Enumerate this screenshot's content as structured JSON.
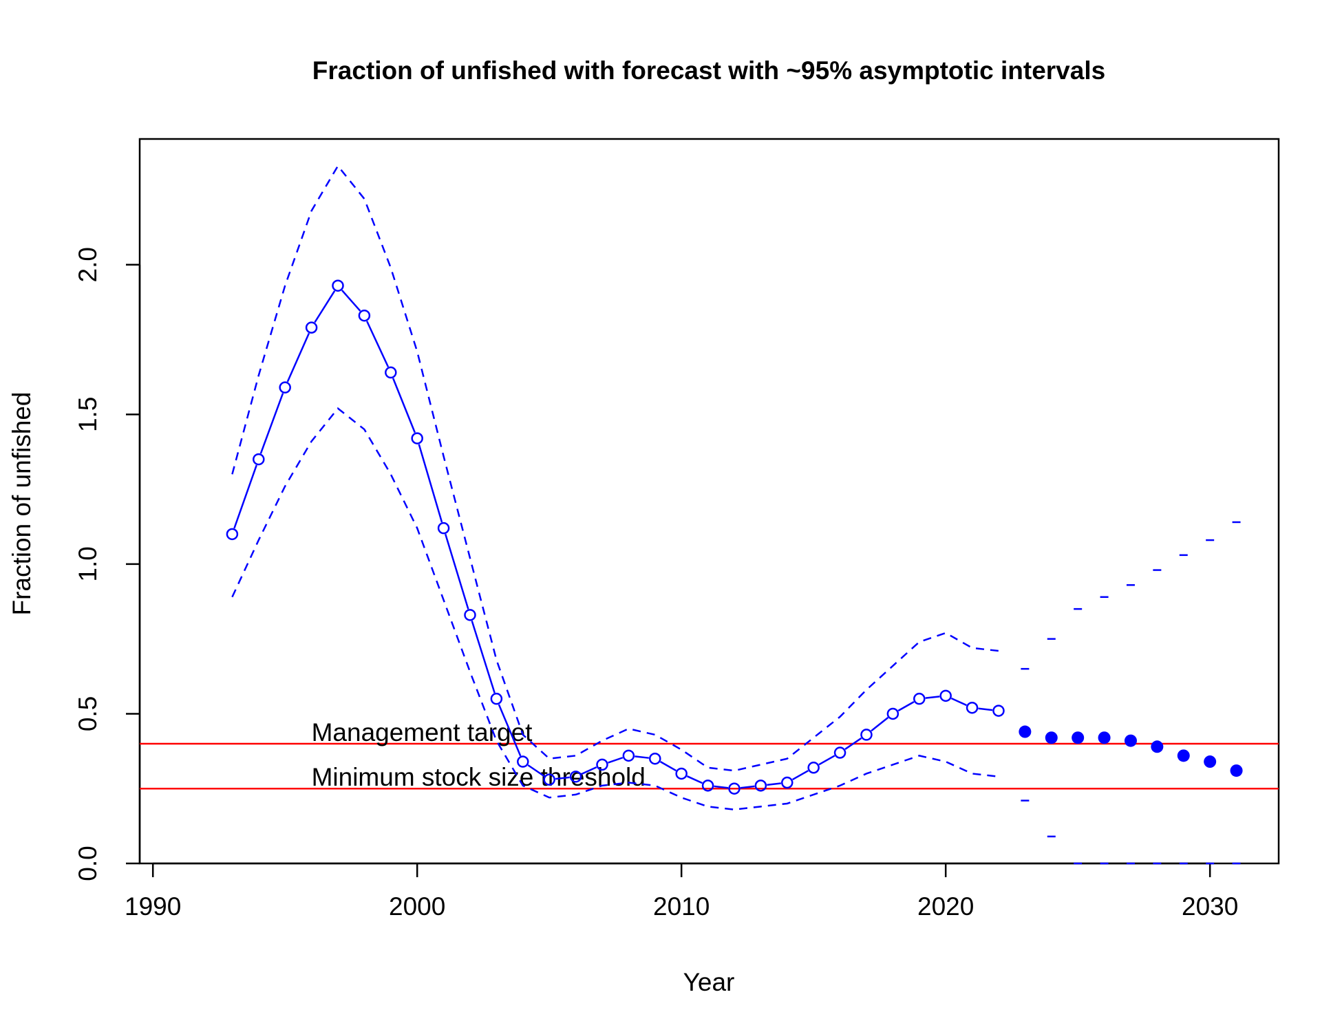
{
  "chart_data": {
    "type": "line",
    "title": "Fraction of unfished with forecast with ~95% asymptotic intervals",
    "xlabel": "Year",
    "ylabel": "Fraction of unfished",
    "xlim": [
      1989.5,
      2032.6
    ],
    "ylim": [
      0,
      2.42
    ],
    "x_ticks": [
      "1990",
      "2000",
      "2010",
      "2020",
      "2030"
    ],
    "y_ticks": [
      "0.0",
      "0.5",
      "1.0",
      "1.5",
      "2.0"
    ],
    "grid": false,
    "colors": {
      "series": "#0000ff",
      "reference": "#ff0000"
    },
    "reference_lines": [
      {
        "label": "Management target",
        "y": 0.4
      },
      {
        "label": "Minimum stock size threshold",
        "y": 0.25
      }
    ],
    "estimates": {
      "x": [
        1993,
        1994,
        1995,
        1996,
        1997,
        1998,
        1999,
        2000,
        2001,
        2002,
        2003,
        2004,
        2005,
        2006,
        2007,
        2008,
        2009,
        2010,
        2011,
        2012,
        2013,
        2014,
        2015,
        2016,
        2017,
        2018,
        2019,
        2020,
        2021,
        2022
      ],
      "y": [
        1.1,
        1.35,
        1.59,
        1.79,
        1.93,
        1.83,
        1.64,
        1.42,
        1.12,
        0.83,
        0.55,
        0.34,
        0.28,
        0.29,
        0.33,
        0.36,
        0.35,
        0.3,
        0.26,
        0.25,
        0.26,
        0.27,
        0.32,
        0.37,
        0.43,
        0.5,
        0.55,
        0.56,
        0.52,
        0.51
      ],
      "upper": [
        1.3,
        1.63,
        1.93,
        2.18,
        2.33,
        2.22,
        1.99,
        1.71,
        1.36,
        1.02,
        0.68,
        0.43,
        0.35,
        0.36,
        0.41,
        0.45,
        0.43,
        0.38,
        0.32,
        0.31,
        0.33,
        0.35,
        0.42,
        0.49,
        0.58,
        0.66,
        0.74,
        0.77,
        0.72,
        0.71
      ],
      "lower": [
        0.89,
        1.08,
        1.26,
        1.41,
        1.52,
        1.45,
        1.3,
        1.12,
        0.88,
        0.64,
        0.41,
        0.26,
        0.22,
        0.23,
        0.26,
        0.27,
        0.26,
        0.22,
        0.19,
        0.18,
        0.19,
        0.2,
        0.23,
        0.26,
        0.3,
        0.33,
        0.36,
        0.34,
        0.3,
        0.29
      ]
    },
    "forecast": {
      "x": [
        2023,
        2024,
        2025,
        2026,
        2027,
        2028,
        2029,
        2030,
        2031
      ],
      "y": [
        0.44,
        0.42,
        0.42,
        0.42,
        0.41,
        0.39,
        0.36,
        0.34,
        0.31
      ],
      "upper": [
        0.65,
        0.75,
        0.85,
        0.89,
        0.93,
        0.98,
        1.03,
        1.08,
        1.14
      ],
      "lower": [
        0.21,
        0.09,
        0.0,
        0.0,
        0.0,
        0.0,
        0.0,
        0.0,
        0.0
      ]
    }
  }
}
